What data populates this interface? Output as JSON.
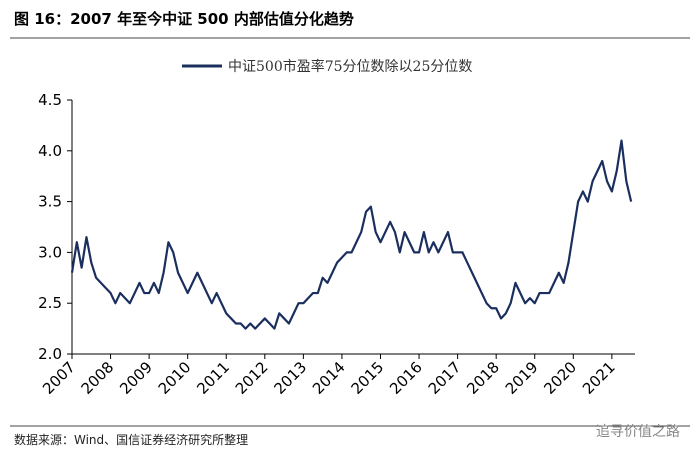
{
  "chart_data": {
    "type": "line",
    "title": "图 16：2007 年至今中证 500 内部估值分化趋势",
    "source": "数据来源：Wind、国信证券经济研究所整理",
    "watermark": "追寻价值之路",
    "x": [
      2007,
      2007.125,
      2007.25,
      2007.375,
      2007.5,
      2007.625,
      2007.75,
      2007.875,
      2008,
      2008.125,
      2008.25,
      2008.375,
      2008.5,
      2008.625,
      2008.75,
      2008.875,
      2009,
      2009.125,
      2009.25,
      2009.375,
      2009.5,
      2009.625,
      2009.75,
      2009.875,
      2010,
      2010.125,
      2010.25,
      2010.375,
      2010.5,
      2010.625,
      2010.75,
      2010.875,
      2011,
      2011.125,
      2011.25,
      2011.375,
      2011.5,
      2011.625,
      2011.75,
      2011.875,
      2012,
      2012.125,
      2012.25,
      2012.375,
      2012.5,
      2012.625,
      2012.75,
      2012.875,
      2013,
      2013.125,
      2013.25,
      2013.375,
      2013.5,
      2013.625,
      2013.75,
      2013.875,
      2014,
      2014.125,
      2014.25,
      2014.375,
      2014.5,
      2014.625,
      2014.75,
      2014.875,
      2015,
      2015.125,
      2015.25,
      2015.375,
      2015.5,
      2015.625,
      2015.75,
      2015.875,
      2016,
      2016.125,
      2016.25,
      2016.375,
      2016.5,
      2016.625,
      2016.75,
      2016.875,
      2017,
      2017.125,
      2017.25,
      2017.375,
      2017.5,
      2017.625,
      2017.75,
      2017.875,
      2018,
      2018.125,
      2018.25,
      2018.375,
      2018.5,
      2018.625,
      2018.75,
      2018.875,
      2019,
      2019.125,
      2019.25,
      2019.375,
      2019.5,
      2019.625,
      2019.75,
      2019.875,
      2020,
      2020.125,
      2020.25,
      2020.375,
      2020.5,
      2020.625,
      2020.75,
      2020.875,
      2021,
      2021.125,
      2021.25,
      2021.375,
      2021.5
    ],
    "series": [
      {
        "name": "中证500市盈率75分位数除以25分位数",
        "color": "#1b2f5e",
        "values": [
          2.8,
          3.1,
          2.85,
          3.15,
          2.9,
          2.75,
          2.7,
          2.65,
          2.6,
          2.5,
          2.6,
          2.55,
          2.5,
          2.6,
          2.7,
          2.6,
          2.6,
          2.7,
          2.6,
          2.8,
          3.1,
          3.0,
          2.8,
          2.7,
          2.6,
          2.7,
          2.8,
          2.7,
          2.6,
          2.5,
          2.6,
          2.5,
          2.4,
          2.35,
          2.3,
          2.3,
          2.25,
          2.3,
          2.25,
          2.3,
          2.35,
          2.3,
          2.25,
          2.4,
          2.35,
          2.3,
          2.4,
          2.5,
          2.5,
          2.55,
          2.6,
          2.6,
          2.75,
          2.7,
          2.8,
          2.9,
          2.95,
          3.0,
          3.0,
          3.1,
          3.2,
          3.4,
          3.45,
          3.2,
          3.1,
          3.2,
          3.3,
          3.2,
          3.0,
          3.2,
          3.1,
          3.0,
          3.0,
          3.2,
          3.0,
          3.1,
          3.0,
          3.1,
          3.2,
          3.0,
          3.0,
          3.0,
          2.9,
          2.8,
          2.7,
          2.6,
          2.5,
          2.45,
          2.45,
          2.35,
          2.4,
          2.5,
          2.7,
          2.6,
          2.5,
          2.55,
          2.5,
          2.6,
          2.6,
          2.6,
          2.7,
          2.8,
          2.7,
          2.9,
          3.2,
          3.5,
          3.6,
          3.5,
          3.7,
          3.8,
          3.9,
          3.7,
          3.6,
          3.8,
          4.1,
          3.7,
          3.5
        ]
      }
    ],
    "xlim": [
      2007,
      2021.6
    ],
    "xticks": [
      2007,
      2008,
      2009,
      2010,
      2011,
      2012,
      2013,
      2014,
      2015,
      2016,
      2017,
      2018,
      2019,
      2020,
      2021
    ],
    "ylim": [
      2,
      4.5
    ],
    "yticks": [
      {
        "value": 2,
        "label": "2.0"
      },
      {
        "value": 2.5,
        "label": "2.5"
      },
      {
        "value": 3,
        "label": "3.0"
      },
      {
        "value": 3.5,
        "label": "3.5"
      },
      {
        "value": 4,
        "label": "4.0"
      },
      {
        "value": 4.5,
        "label": "4.5"
      }
    ],
    "grid": false,
    "legend": "top"
  }
}
